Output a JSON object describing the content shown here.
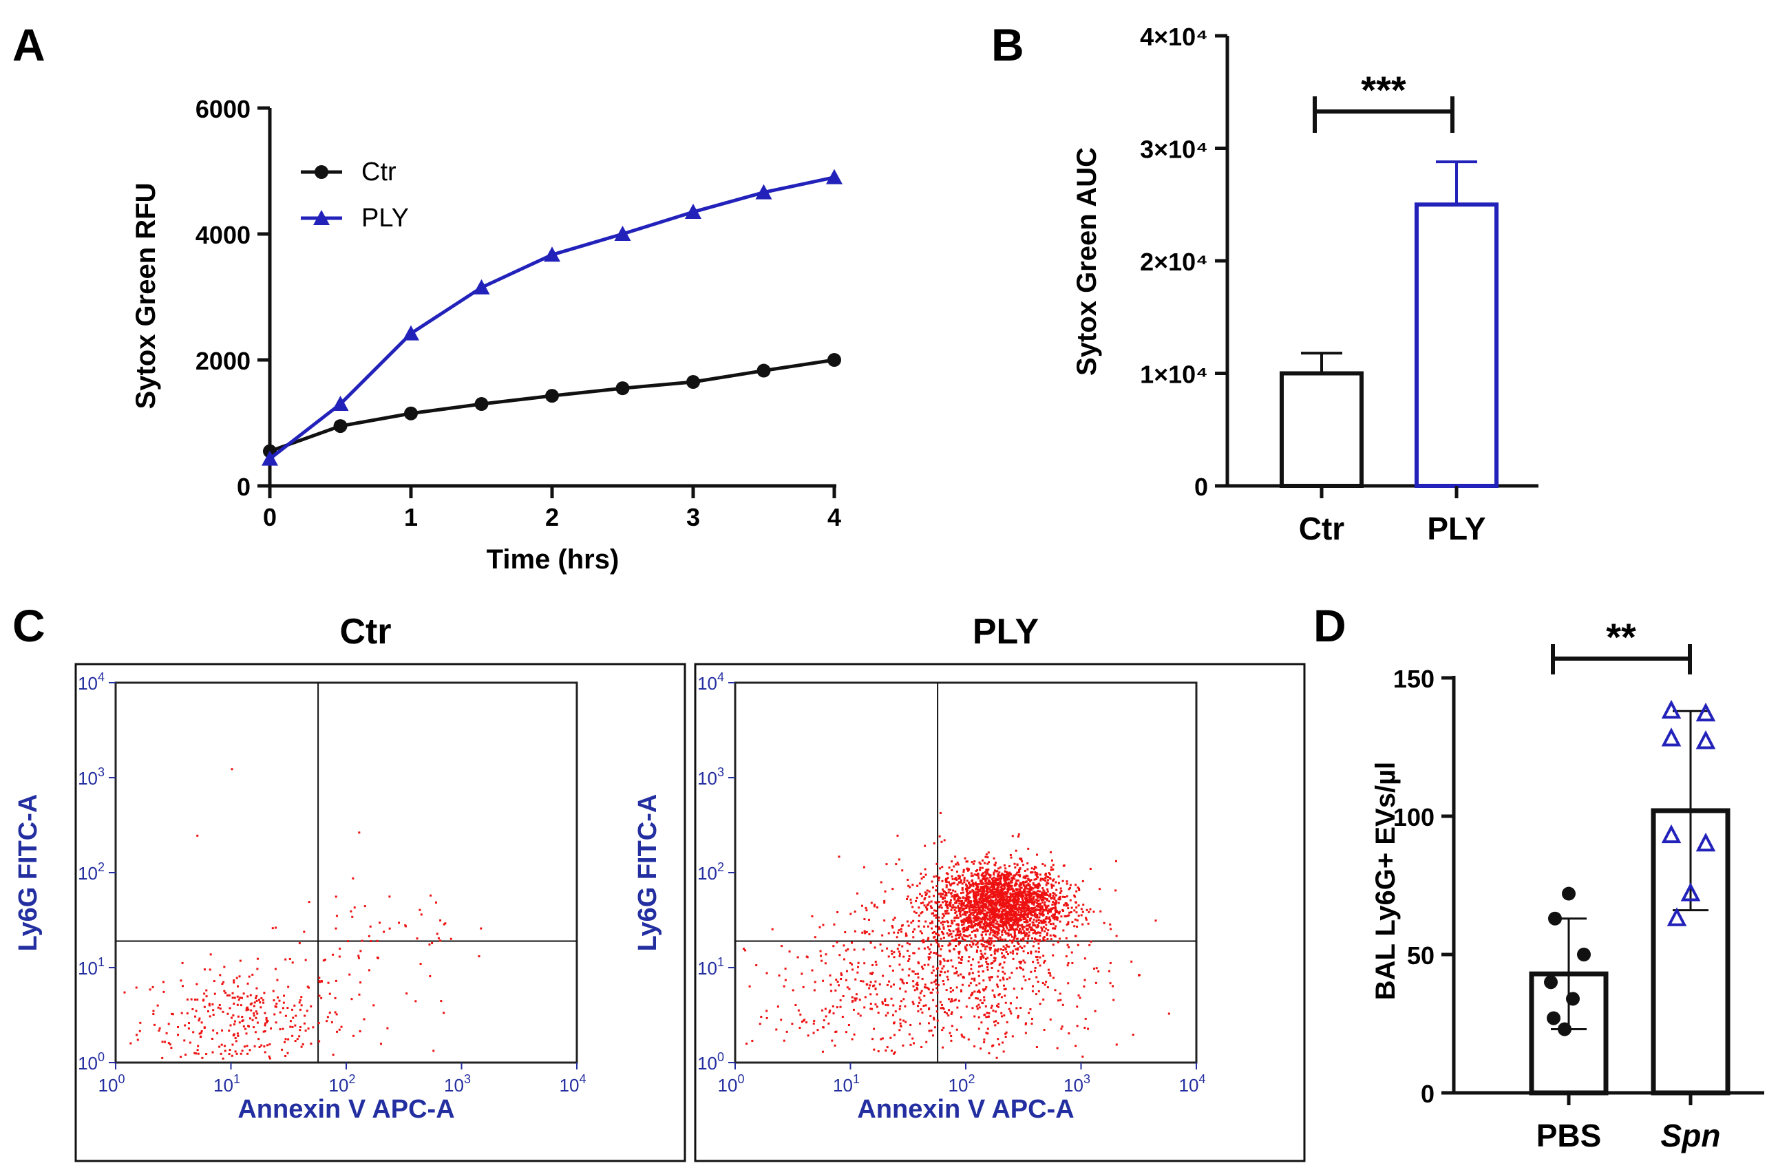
{
  "panel_labels": {
    "a": "A",
    "b": "B",
    "c": "C",
    "d": "D"
  },
  "colors": {
    "ctr": "#111111",
    "ply": "#2222bb",
    "dots": "#ee1111",
    "flow_axis": "#232ea0"
  },
  "chart_data": [
    {
      "type": "line",
      "panel": "A",
      "title": "",
      "xlabel": "Time (hrs)",
      "ylabel": "Sytox Green RFU",
      "xlim": [
        0,
        4
      ],
      "ylim": [
        0,
        6000
      ],
      "xticks": [
        "0",
        "1",
        "2",
        "3",
        "4"
      ],
      "yticks": [
        "0",
        "2000",
        "4000",
        "6000"
      ],
      "x": [
        0,
        0.5,
        1,
        1.5,
        2,
        2.5,
        3,
        3.5,
        4
      ],
      "series": [
        {
          "name": "Ctr",
          "marker": "circle",
          "values": [
            550,
            950,
            1150,
            1300,
            1430,
            1550,
            1650,
            1830,
            2000
          ]
        },
        {
          "name": "PLY",
          "marker": "triangle",
          "values": [
            430,
            1300,
            2420,
            3150,
            3670,
            4000,
            4350,
            4660,
            4900
          ]
        }
      ],
      "legend": "top-left"
    },
    {
      "type": "bar",
      "panel": "B",
      "ylabel": "Sytox Green AUC",
      "ylim": [
        0,
        40000
      ],
      "yticks": [
        "0",
        "1×10⁴",
        "2×10⁴",
        "3×10⁴",
        "4×10⁴"
      ],
      "categories": [
        "Ctr",
        "PLY"
      ],
      "values": [
        10000,
        25000
      ],
      "errors": [
        1800,
        3800
      ],
      "significance": "***"
    },
    {
      "type": "scatter",
      "panel": "C",
      "subplots": [
        "Ctr",
        "PLY"
      ],
      "xlabel": "Annexin V APC-A",
      "ylabel": "Ly6G FITC-A",
      "scale": "log10",
      "xlim": [
        1,
        10000
      ],
      "ylim": [
        1,
        10000
      ],
      "ticks": [
        "10",
        "10",
        "10",
        "10",
        "10"
      ],
      "tick_exponents": [
        "0",
        "1",
        "2",
        "3",
        "4"
      ],
      "gate": {
        "x": 57,
        "y": 19
      }
    },
    {
      "type": "bar",
      "panel": "D",
      "ylabel": "BAL Ly6G+ EVs/µl",
      "ylim": [
        0,
        150
      ],
      "yticks": [
        "0",
        "50",
        "100",
        "150"
      ],
      "categories": [
        "PBS",
        "Spn"
      ],
      "values": [
        43,
        102
      ],
      "errors": [
        20,
        36
      ],
      "points": [
        [
          72,
          63,
          50,
          40,
          34,
          27,
          23
        ],
        [
          138,
          137,
          128,
          127,
          93,
          90,
          72,
          63
        ]
      ],
      "significance": "**"
    }
  ]
}
